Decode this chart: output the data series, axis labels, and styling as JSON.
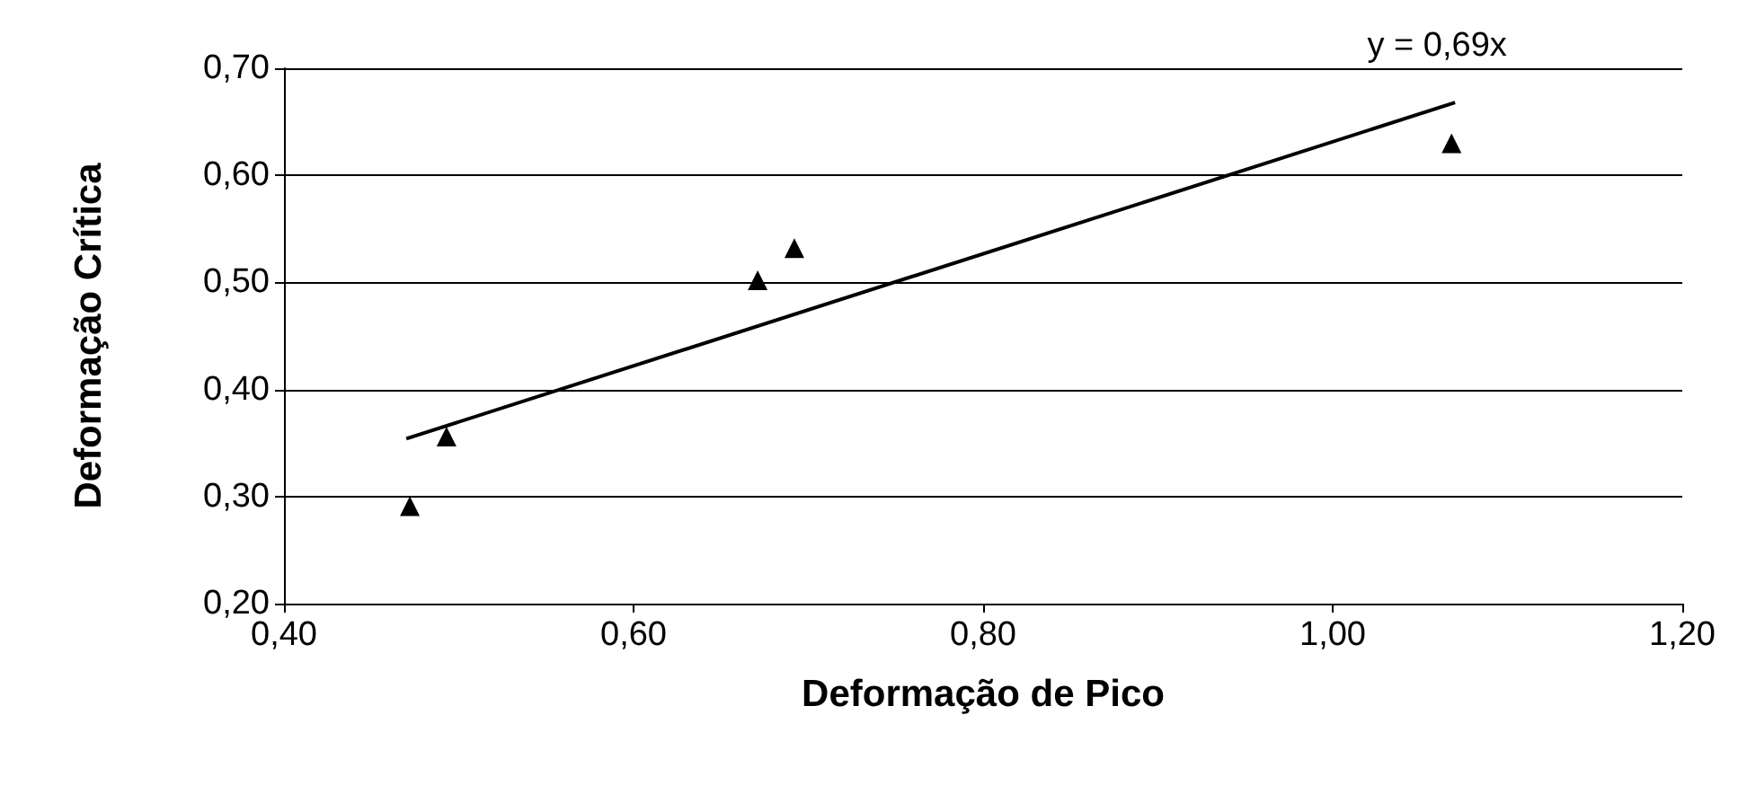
{
  "chart_data": {
    "type": "scatter",
    "xlabel": "Deformação de Pico",
    "ylabel": "Deformação Crítica",
    "series": [
      {
        "color": "#000000",
        "marker": "triangle",
        "x": [
          0.472,
          0.493,
          0.671,
          0.692,
          1.068
        ],
        "values": [
          0.291,
          0.356,
          0.502,
          0.532,
          0.63
        ]
      },
      {
        "type": "line",
        "color": "#000000",
        "marker": "none",
        "line_style": "solid",
        "x": [
          0.47,
          1.07
        ],
        "values": [
          0.354,
          0.668
        ]
      }
    ],
    "annotations": [
      {
        "text": "y = 0,69x",
        "x": 1.07,
        "y": 0.668
      }
    ],
    "xlim": [
      0.4,
      1.2
    ],
    "xticks": [
      {
        "value": 0.4,
        "label": "0,40"
      },
      {
        "value": 0.6,
        "label": "0,60"
      },
      {
        "value": 0.8,
        "label": "0,80"
      },
      {
        "value": 1.0,
        "label": "1,00"
      },
      {
        "value": 1.2,
        "label": "1,20"
      }
    ],
    "ylim": [
      0.2,
      0.7
    ],
    "yticks": [
      {
        "value": 0.2,
        "label": "0,20"
      },
      {
        "value": 0.3,
        "label": "0,30"
      },
      {
        "value": 0.4,
        "label": "0,40"
      },
      {
        "value": 0.5,
        "label": "0,50"
      },
      {
        "value": 0.6,
        "label": "0,60"
      },
      {
        "value": 0.7,
        "label": "0,70"
      }
    ],
    "grid": "y"
  }
}
